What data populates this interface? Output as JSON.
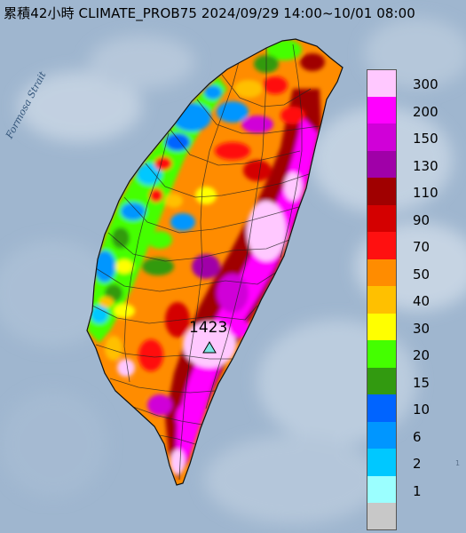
{
  "title": "累積42小時 CLIMATE_PROB75 2024/09/29 14:00~10/01 08:00",
  "strait_label": "Formosa Strait",
  "max_value_label": "1423",
  "edge_mark": "1",
  "legend": [
    {
      "label": "300",
      "color": "#ffc8ff"
    },
    {
      "label": "200",
      "color": "#ff00ff"
    },
    {
      "label": "150",
      "color": "#d000d8"
    },
    {
      "label": "130",
      "color": "#a000a8"
    },
    {
      "label": "110",
      "color": "#a00000"
    },
    {
      "label": "90",
      "color": "#d40000"
    },
    {
      "label": "70",
      "color": "#ff1010"
    },
    {
      "label": "50",
      "color": "#ff8c00"
    },
    {
      "label": "40",
      "color": "#ffc000"
    },
    {
      "label": "30",
      "color": "#ffff00"
    },
    {
      "label": "20",
      "color": "#44ff00"
    },
    {
      "label": "15",
      "color": "#329a10"
    },
    {
      "label": "10",
      "color": "#0064ff"
    },
    {
      "label": "6",
      "color": "#0096ff"
    },
    {
      "label": "2",
      "color": "#00c8ff"
    },
    {
      "label": "1",
      "color": "#9bffff"
    },
    {
      "label": "",
      "color": "#c8c8c8"
    }
  ]
}
